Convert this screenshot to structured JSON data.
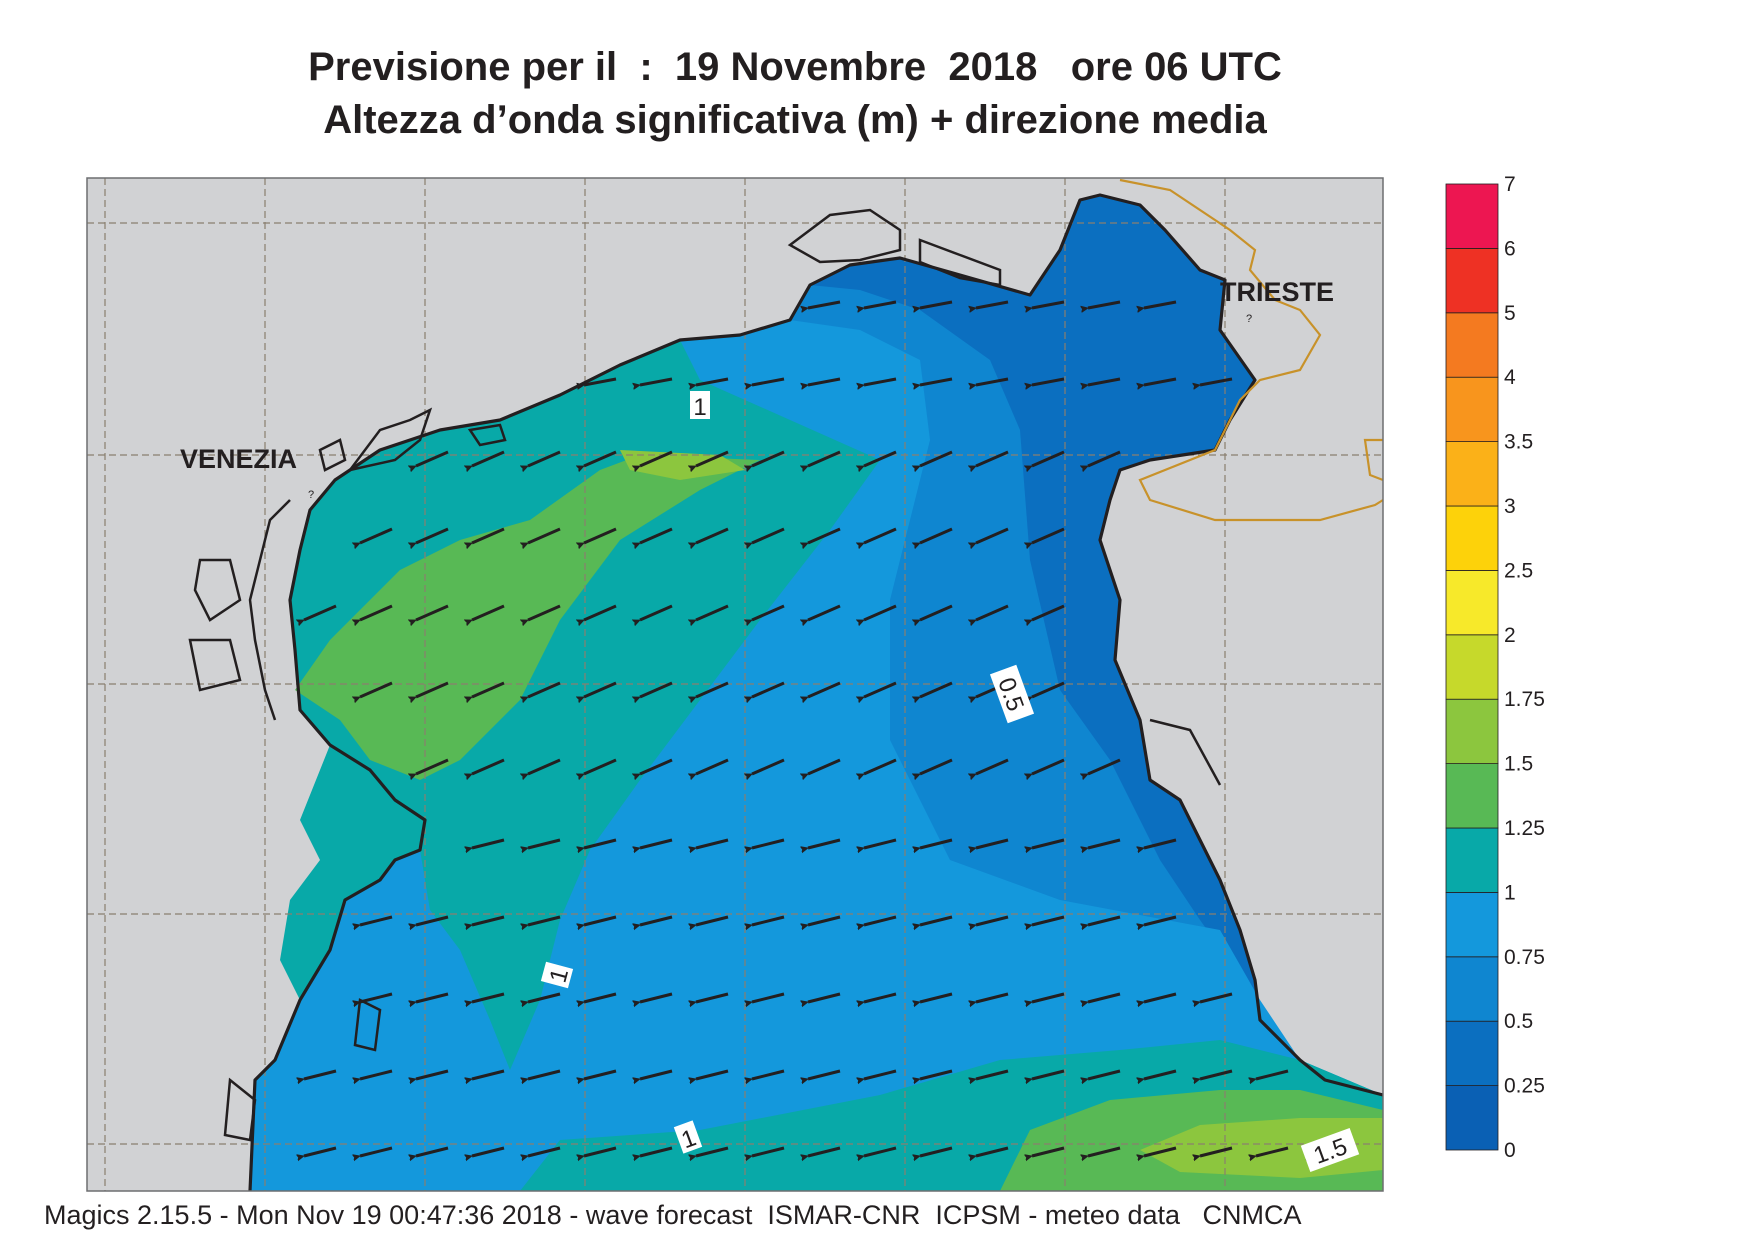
{
  "header": {
    "title_line1": "Previsione per il  :  19 Novembre  2018   ore 06 UTC",
    "title_line2": "Altezza d’onda significativa (m) + direzione media"
  },
  "map": {
    "labels": {
      "venezia": "VENEZIA",
      "trieste": "TRIESTE",
      "trieste_marker": "?",
      "venezia_marker": "?"
    },
    "contour_labels": [
      "1",
      "1",
      "1",
      "0.5",
      "1.5"
    ],
    "land_color": "#d1d2d4",
    "border_color": "#c8922a",
    "arrow_direction": "toward west-southwest"
  },
  "colorbar": {
    "ticks": [
      "0",
      "0.25",
      "0.5",
      "0.75",
      "1",
      "1.25",
      "1.5",
      "1.75",
      "2",
      "2.5",
      "3",
      "3.5",
      "4",
      "5",
      "6",
      "7"
    ],
    "colors": [
      "#0a60b4",
      "#0b6fc0",
      "#0f86d0",
      "#1498dc",
      "#08a9a8",
      "#58b955",
      "#8cc63e",
      "#c6d92b",
      "#f7e92a",
      "#fdd20a",
      "#fbb118",
      "#f8951d",
      "#f47a20",
      "#ee3124",
      "#ed1651"
    ]
  },
  "footer": {
    "text": "Magics 2.15.5 - Mon Nov 19 00:47:36 2018 - wave forecast  ISMAR-CNR  ICPSM - meteo data   CNMCA"
  }
}
